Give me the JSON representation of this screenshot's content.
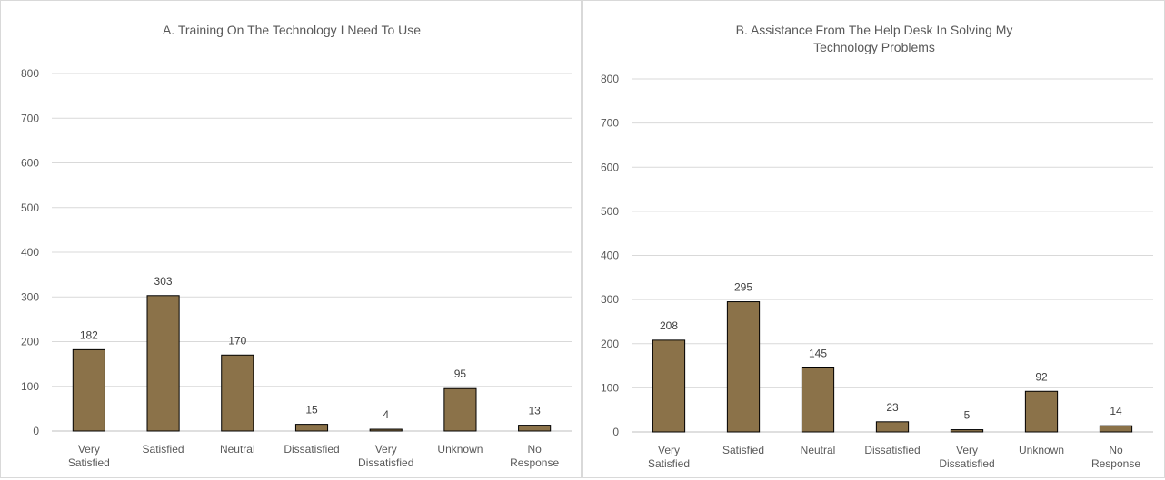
{
  "chart_data": [
    {
      "type": "bar",
      "title": "A. Training On The Technology I Need To Use",
      "categories": [
        "Very Satisfied",
        "Satisfied",
        "Neutral",
        "Dissatisfied",
        "Very Dissatisfied",
        "Unknown",
        "No Response"
      ],
      "values": [
        182,
        303,
        170,
        15,
        4,
        95,
        13
      ],
      "ylim": [
        0,
        800
      ],
      "yticks": [
        0,
        100,
        200,
        300,
        400,
        500,
        600,
        700,
        800
      ],
      "grid": true,
      "bar_color": "#8B7249"
    },
    {
      "type": "bar",
      "title": "B. Assistance From The Help Desk In Solving My Technology Problems",
      "categories": [
        "Very Satisfied",
        "Satisfied",
        "Neutral",
        "Dissatisfied",
        "Very Dissatisfied",
        "Unknown",
        "No Response"
      ],
      "values": [
        208,
        295,
        145,
        23,
        5,
        92,
        14
      ],
      "ylim": [
        0,
        800
      ],
      "yticks": [
        0,
        100,
        200,
        300,
        400,
        500,
        600,
        700,
        800
      ],
      "grid": true,
      "bar_color": "#8B7249"
    }
  ]
}
